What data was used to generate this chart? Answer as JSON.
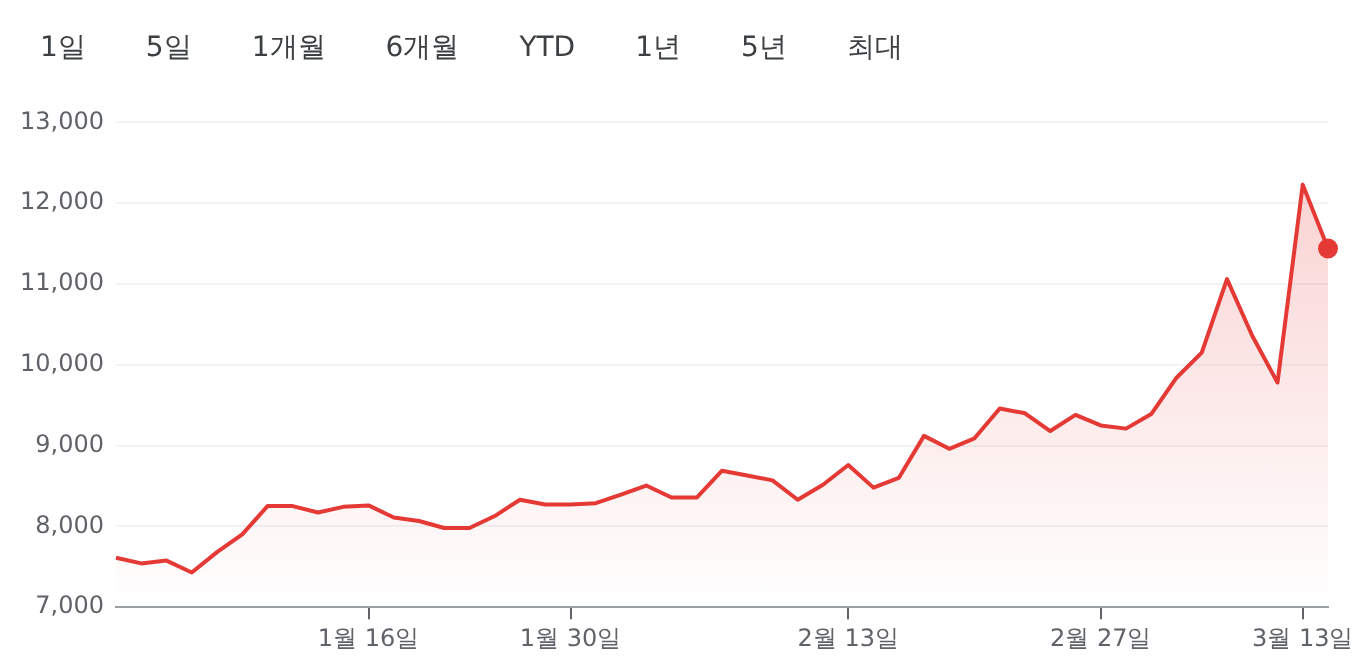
{
  "chart_data": {
    "type": "area",
    "annotations": [
      "1일",
      "5일",
      "1개월",
      "6개월",
      "YTD",
      "1년",
      "5년",
      "최대"
    ],
    "categories": [
      null,
      null,
      null,
      null,
      null,
      null,
      null,
      null,
      null,
      null,
      "1월 16일",
      null,
      null,
      null,
      null,
      null,
      null,
      null,
      "1월 30일",
      null,
      null,
      null,
      null,
      null,
      null,
      null,
      null,
      null,
      null,
      "2월 13일",
      null,
      null,
      null,
      null,
      null,
      null,
      null,
      null,
      null,
      "2월 27일",
      null,
      null,
      null,
      null,
      null,
      null,
      null,
      "3월 13일",
      null
    ],
    "series": [
      {
        "color": "#e53935",
        "values": [
          7612,
          7542,
          7577,
          7429,
          7682,
          7901,
          8251,
          8251,
          8172,
          8242,
          8260,
          8111,
          8067,
          7980,
          7980,
          8128,
          8330,
          8270,
          8270,
          8287,
          8392,
          8506,
          8357,
          8357,
          8689,
          8630,
          8570,
          8330,
          8515,
          8760,
          8480,
          8600,
          9120,
          8960,
          9090,
          9460,
          9400,
          9180,
          9380,
          9250,
          9210,
          9390,
          9840,
          10150,
          11060,
          10360,
          9780,
          12230,
          11440
        ]
      }
    ],
    "ylim": [
      7000,
      13000
    ],
    "yticks": [
      {
        "value": 7000,
        "label": "7,000"
      },
      {
        "value": 8000,
        "label": "8,000"
      },
      {
        "value": 9000,
        "label": "9,000"
      },
      {
        "value": 10000,
        "label": "10,000"
      },
      {
        "value": 11000,
        "label": "11,000"
      },
      {
        "value": 12000,
        "label": "12,000"
      },
      {
        "value": 13000,
        "label": "13,000"
      }
    ],
    "grid": "y"
  }
}
